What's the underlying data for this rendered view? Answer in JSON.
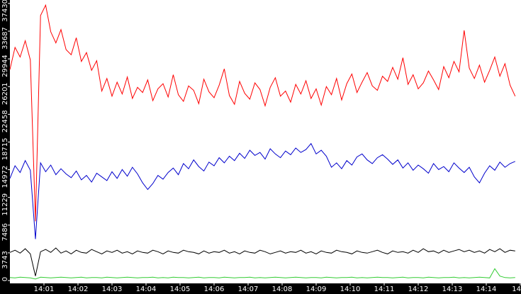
{
  "chart_data": {
    "type": "line",
    "x": [
      "14:00:00",
      "14:00:09",
      "14:00:18",
      "14:00:27",
      "14:00:36",
      "14:00:45",
      "14:00:54",
      "14:01:03",
      "14:01:12",
      "14:01:21",
      "14:01:30",
      "14:01:39",
      "14:01:48",
      "14:01:57",
      "14:02:06",
      "14:02:15",
      "14:02:24",
      "14:02:33",
      "14:02:42",
      "14:02:51",
      "14:03:00",
      "14:03:09",
      "14:03:18",
      "14:03:27",
      "14:03:36",
      "14:03:45",
      "14:03:54",
      "14:04:03",
      "14:04:12",
      "14:04:21",
      "14:04:30",
      "14:04:39",
      "14:04:48",
      "14:04:57",
      "14:05:06",
      "14:05:15",
      "14:05:24",
      "14:05:33",
      "14:05:42",
      "14:05:51",
      "14:06:00",
      "14:06:09",
      "14:06:18",
      "14:06:27",
      "14:06:36",
      "14:06:45",
      "14:06:54",
      "14:07:03",
      "14:07:12",
      "14:07:21",
      "14:07:30",
      "14:07:39",
      "14:07:48",
      "14:07:57",
      "14:08:06",
      "14:08:15",
      "14:08:24",
      "14:08:33",
      "14:08:42",
      "14:08:51",
      "14:09:00",
      "14:09:09",
      "14:09:18",
      "14:09:27",
      "14:09:36",
      "14:09:45",
      "14:09:54",
      "14:10:03",
      "14:10:12",
      "14:10:21",
      "14:10:30",
      "14:10:39",
      "14:10:48",
      "14:10:57",
      "14:11:06",
      "14:11:15",
      "14:11:24",
      "14:11:33",
      "14:11:42",
      "14:11:51",
      "14:12:00",
      "14:12:09",
      "14:12:18",
      "14:12:27",
      "14:12:36",
      "14:12:45",
      "14:12:54",
      "14:13:03",
      "14:13:12",
      "14:13:21",
      "14:13:30",
      "14:13:39",
      "14:13:48",
      "14:13:57",
      "14:14:06",
      "14:14:15",
      "14:14:24",
      "14:14:33",
      "14:14:42",
      "14:14:51"
    ],
    "series": [
      {
        "color": "#ff0000",
        "values": [
          28500,
          31500,
          30200,
          32400,
          29800,
          8000,
          35800,
          37200,
          33600,
          32100,
          33900,
          31200,
          30500,
          32800,
          29600,
          30800,
          28400,
          29700,
          25600,
          27300,
          24900,
          26800,
          25200,
          27500,
          24600,
          26100,
          25400,
          27100,
          24300,
          25900,
          26600,
          24800,
          27800,
          25100,
          24200,
          26300,
          25700,
          23900,
          27200,
          25500,
          24700,
          26400,
          28600,
          25000,
          23800,
          26900,
          25300,
          24500,
          26700,
          25800,
          23600,
          26100,
          27400,
          24900,
          25600,
          24100,
          26500,
          25200,
          27000,
          24600,
          25900,
          23700,
          26200,
          25100,
          27300,
          24400,
          26600,
          27900,
          25400,
          26800,
          28100,
          26300,
          25700,
          27600,
          26900,
          28800,
          27200,
          30100,
          26500,
          27800,
          25900,
          26700,
          28300,
          27100,
          25800,
          28900,
          27400,
          29600,
          28200,
          33800,
          28700,
          27300,
          29100,
          26800,
          28400,
          30200,
          27600,
          29300,
          26400,
          24900
        ]
      },
      {
        "color": "#0000cc",
        "values": [
          13800,
          15500,
          14600,
          16200,
          14900,
          5600,
          15900,
          14700,
          15600,
          14300,
          15100,
          14400,
          13900,
          14800,
          13600,
          14200,
          13300,
          14500,
          14000,
          13500,
          14700,
          13800,
          15000,
          14100,
          15300,
          14400,
          13200,
          12300,
          13100,
          14200,
          13700,
          14600,
          15200,
          14300,
          15800,
          15100,
          16300,
          15400,
          14800,
          16000,
          15500,
          16600,
          15900,
          16800,
          16200,
          17200,
          16500,
          17600,
          16900,
          17300,
          16400,
          17800,
          17100,
          16600,
          17500,
          17000,
          17900,
          17300,
          17700,
          18500,
          17100,
          17600,
          16800,
          15300,
          15900,
          15100,
          16200,
          15600,
          16700,
          17100,
          16300,
          15800,
          16600,
          17000,
          16400,
          15700,
          16300,
          15200,
          15900,
          14900,
          15600,
          15100,
          14500,
          15800,
          15000,
          15400,
          14700,
          15900,
          15200,
          14600,
          15300,
          14000,
          13200,
          14500,
          15500,
          14900,
          16000,
          15300,
          15800,
          16100
        ]
      },
      {
        "color": "#000000",
        "values": [
          3800,
          4100,
          3700,
          4300,
          3600,
          600,
          3900,
          4200,
          3800,
          4400,
          3700,
          4000,
          3600,
          4100,
          3800,
          3700,
          4200,
          3900,
          3600,
          4000,
          3800,
          4100,
          3700,
          3900,
          3600,
          4000,
          3800,
          3700,
          4100,
          3900,
          3600,
          4000,
          3800,
          3700,
          4100,
          3900,
          3800,
          3600,
          4000,
          3700,
          3900,
          3800,
          4100,
          3700,
          3900,
          3600,
          4000,
          3800,
          3700,
          4100,
          3900,
          3600,
          3800,
          4000,
          3700,
          3900,
          3800,
          4100,
          3700,
          3900,
          3600,
          4000,
          3800,
          3700,
          4100,
          3900,
          3800,
          3600,
          4000,
          3800,
          3700,
          3900,
          4100,
          3800,
          3600,
          4000,
          3800,
          3900,
          3700,
          4100,
          3800,
          4300,
          3900,
          4000,
          3700,
          4100,
          3800,
          4000,
          4200,
          3900,
          4100,
          3800,
          4000,
          3700,
          4200,
          3900,
          4300,
          3800,
          4100,
          4000
        ]
      },
      {
        "color": "#33cc33",
        "values": [
          400,
          350,
          450,
          400,
          350,
          200,
          450,
          400,
          350,
          400,
          450,
          400,
          350,
          400,
          450,
          350,
          400,
          400,
          350,
          450,
          400,
          350,
          400,
          450,
          400,
          350,
          400,
          400,
          450,
          350,
          400,
          350,
          450,
          400,
          400,
          350,
          400,
          450,
          350,
          400,
          400,
          350,
          450,
          400,
          350,
          400,
          400,
          450,
          350,
          400,
          350,
          400,
          450,
          400,
          350,
          400,
          450,
          400,
          350,
          400,
          400,
          350,
          450,
          400,
          350,
          400,
          400,
          450,
          350,
          400,
          350,
          400,
          450,
          400,
          400,
          350,
          400,
          450,
          350,
          400,
          400,
          350,
          450,
          400,
          350,
          400,
          400,
          450,
          350,
          400,
          350,
          400,
          450,
          400,
          350,
          1600,
          600,
          400,
          350,
          400
        ]
      }
    ],
    "xlim": [
      "14:00:00",
      "14:15:00"
    ],
    "xticks": [
      "14:01",
      "14:02",
      "14:03",
      "14:04",
      "14:05",
      "14:06",
      "14:07",
      "14:08",
      "14:09",
      "14:10",
      "14:11",
      "14:12",
      "14:13",
      "14:14",
      {
        "value": "14:15",
        "label": "14"
      }
    ],
    "ylim": [
      0,
      37900
    ],
    "yticks": [
      0,
      3743,
      7486,
      11229,
      14972,
      18715,
      22458,
      26201,
      29944,
      33687,
      37430
    ]
  }
}
